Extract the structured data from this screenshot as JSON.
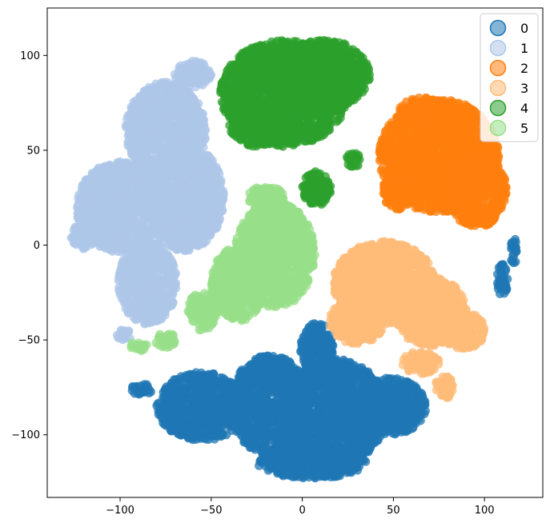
{
  "chart_data": {
    "type": "scatter",
    "title": "",
    "xlabel": "",
    "ylabel": "",
    "xlim": [
      -140,
      132
    ],
    "ylim": [
      -133,
      125
    ],
    "xticks": [
      -100,
      -50,
      0,
      50,
      100
    ],
    "yticks": [
      -100,
      -50,
      0,
      50,
      100
    ],
    "grid": false,
    "legend_position": "top-right",
    "series": [
      {
        "name": "0",
        "color": "#1f77b4",
        "clusters": [
          {
            "cx": -88,
            "cy": -76,
            "rx": 6,
            "ry": 3
          },
          {
            "cx": -55,
            "cy": -85,
            "rx": 25,
            "ry": 18
          },
          {
            "cx": -18,
            "cy": -84,
            "rx": 22,
            "ry": 26
          },
          {
            "cx": 18,
            "cy": -88,
            "rx": 28,
            "ry": 28
          },
          {
            "cx": 48,
            "cy": -85,
            "rx": 20,
            "ry": 15
          },
          {
            "cx": 5,
            "cy": -114,
            "rx": 30,
            "ry": 9
          },
          {
            "cx": 8,
            "cy": -55,
            "rx": 9,
            "ry": 14
          },
          {
            "cx": 110,
            "cy": -18,
            "rx": 3,
            "ry": 9
          },
          {
            "cx": 116,
            "cy": -3,
            "rx": 2,
            "ry": 7
          }
        ]
      },
      {
        "name": "1",
        "color": "#aec7e8",
        "clusters": [
          {
            "cx": -75,
            "cy": 60,
            "rx": 22,
            "ry": 26
          },
          {
            "cx": -100,
            "cy": 20,
            "rx": 24,
            "ry": 24
          },
          {
            "cx": -65,
            "cy": 25,
            "rx": 22,
            "ry": 28
          },
          {
            "cx": -85,
            "cy": -20,
            "rx": 16,
            "ry": 22
          },
          {
            "cx": -60,
            "cy": 90,
            "rx": 10,
            "ry": 7
          },
          {
            "cx": -120,
            "cy": 5,
            "rx": 7,
            "ry": 7
          },
          {
            "cx": -98,
            "cy": -48,
            "rx": 4,
            "ry": 4
          }
        ]
      },
      {
        "name": "2",
        "color": "#ff7f0e",
        "clusters": [
          {
            "cx": 75,
            "cy": 47,
            "rx": 33,
            "ry": 30
          },
          {
            "cx": 95,
            "cy": 30,
            "rx": 17,
            "ry": 20
          },
          {
            "cx": 65,
            "cy": 70,
            "rx": 12,
            "ry": 8
          },
          {
            "cx": 52,
            "cy": 30,
            "rx": 8,
            "ry": 12
          },
          {
            "cx": 100,
            "cy": 15,
            "rx": 6,
            "ry": 5
          }
        ]
      },
      {
        "name": "3",
        "color": "#ffbb78",
        "clusters": [
          {
            "cx": 45,
            "cy": -20,
            "rx": 28,
            "ry": 22
          },
          {
            "cx": 70,
            "cy": -35,
            "rx": 20,
            "ry": 18
          },
          {
            "cx": 30,
            "cy": -40,
            "rx": 15,
            "ry": 12
          },
          {
            "cx": 88,
            "cy": -45,
            "rx": 12,
            "ry": 10
          },
          {
            "cx": 78,
            "cy": -75,
            "rx": 5,
            "ry": 6
          },
          {
            "cx": 65,
            "cy": -62,
            "rx": 10,
            "ry": 6
          }
        ]
      },
      {
        "name": "4",
        "color": "#2ca02c",
        "clusters": [
          {
            "cx": -10,
            "cy": 80,
            "rx": 35,
            "ry": 28
          },
          {
            "cx": 12,
            "cy": 90,
            "rx": 25,
            "ry": 18
          },
          {
            "cx": -25,
            "cy": 62,
            "rx": 15,
            "ry": 10
          },
          {
            "cx": 8,
            "cy": 30,
            "rx": 8,
            "ry": 9
          },
          {
            "cx": 28,
            "cy": 45,
            "rx": 4,
            "ry": 4
          }
        ]
      },
      {
        "name": "5",
        "color": "#98df8a",
        "clusters": [
          {
            "cx": -15,
            "cy": -5,
            "rx": 22,
            "ry": 28
          },
          {
            "cx": -35,
            "cy": -20,
            "rx": 15,
            "ry": 20
          },
          {
            "cx": -55,
            "cy": -35,
            "rx": 8,
            "ry": 10
          },
          {
            "cx": -20,
            "cy": 25,
            "rx": 10,
            "ry": 6
          },
          {
            "cx": -75,
            "cy": -50,
            "rx": 6,
            "ry": 4
          },
          {
            "cx": -90,
            "cy": -53,
            "rx": 5,
            "ry": 3
          }
        ]
      }
    ]
  }
}
